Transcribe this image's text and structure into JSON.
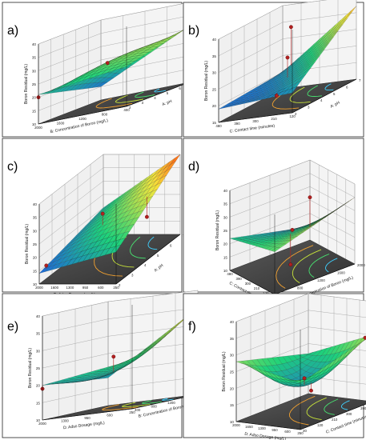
{
  "chart_data": [
    {
      "type": "surface3d",
      "panel": "a)",
      "zlabel": "Boron Residual (mg/L)",
      "xlabel": "B: Concentration of Boron (mg/L)",
      "ylabel": "A: pH",
      "zticks": [
        "10",
        "15",
        "20",
        "25",
        "30",
        "35",
        "40"
      ],
      "xticks": [
        "2000",
        "1600",
        "1200",
        "800",
        "400"
      ],
      "yticks": [
        "2",
        "3",
        "4",
        "5",
        "6",
        "7"
      ],
      "zlim": [
        10,
        40
      ],
      "xlim": [
        2000,
        400
      ],
      "ylim": [
        2,
        7
      ],
      "corners": [
        21,
        25,
        15,
        31
      ],
      "center": 26.5,
      "points": [
        {
          "u": 0.5,
          "v": 0.4,
          "z": 26
        },
        {
          "u": 1.0,
          "v": 1.0,
          "z": 34
        },
        {
          "u": 0.0,
          "v": 0.0,
          "z": 20
        }
      ]
    },
    {
      "type": "surface3d",
      "panel": "b)",
      "zlabel": "Boron Residual (mg/L)",
      "xlabel": "C: Contact time (minutes)",
      "ylabel": "A: pH",
      "zticks": [
        "15",
        "20",
        "25",
        "30",
        "35",
        "40"
      ],
      "xticks": [
        "480",
        "390",
        "300",
        "210",
        "120"
      ],
      "yticks": [
        "2",
        "3",
        "4",
        "5",
        "6",
        "7"
      ],
      "zlim": [
        15,
        40
      ],
      "xlim": [
        480,
        120
      ],
      "ylim": [
        2,
        7
      ],
      "corners": [
        19,
        21,
        20,
        37
      ],
      "center": 22,
      "points": [
        {
          "u": 0.5,
          "v": 0.5,
          "z": 28
        },
        {
          "u": 0.2,
          "v": 0.9,
          "z": 34
        },
        {
          "u": 0.7,
          "v": 0.1,
          "z": 20
        }
      ]
    },
    {
      "type": "surface3d",
      "panel": "c)",
      "zlabel": "Boron Residual (mg/L)",
      "xlabel": "D: Adso Dosage (mg/L)",
      "ylabel": "A: pH",
      "zticks": [
        "10",
        "15",
        "20",
        "25",
        "30",
        "35",
        "40"
      ],
      "xticks": [
        "2000",
        "1600",
        "1300",
        "950",
        "600",
        "250"
      ],
      "yticks": [
        "2",
        "3",
        "4",
        "5",
        "6",
        "7"
      ],
      "zlim": [
        10,
        40
      ],
      "xlim": [
        2000,
        250
      ],
      "ylim": [
        2,
        7
      ],
      "corners": [
        14,
        22,
        20,
        40
      ],
      "center": 25,
      "points": [
        {
          "u": 0.45,
          "v": 0.45,
          "z": 28
        },
        {
          "u": 0.9,
          "v": 0.6,
          "z": 24
        },
        {
          "u": 0.05,
          "v": 0.05,
          "z": 16
        }
      ]
    },
    {
      "type": "surface3d",
      "panel": "d)",
      "zlabel": "Boron Residual (mg/L)",
      "xlabel": "C: Contact time (minutes)",
      "ylabel": "B: Concentration of Boron (mg/L)",
      "zticks": [
        "10",
        "15",
        "20",
        "25",
        "30",
        "35",
        "40"
      ],
      "xticks": [
        "480",
        "390",
        "300",
        "210",
        "120",
        "30"
      ],
      "yticks": [
        "400",
        "800",
        "1200",
        "1600",
        "2000"
      ],
      "zlim": [
        10,
        40
      ],
      "xlim": [
        480,
        30
      ],
      "ylim": [
        400,
        2000
      ],
      "corners": [
        22,
        26,
        15,
        35
      ],
      "center": 23,
      "points": [
        {
          "u": 0.5,
          "v": 0.5,
          "z": 24
        },
        {
          "u": 0.0,
          "v": 1.0,
          "z": 26
        },
        {
          "u": 0.55,
          "v": 0.45,
          "z": 12
        }
      ]
    },
    {
      "type": "surface3d",
      "panel": "e)",
      "zlabel": "Boron Residual (mg/L)",
      "xlabel": "D: Adso Dosage (mg/L)",
      "ylabel": "B: Concentration of Boron (mg/L)",
      "zticks": [
        "10",
        "15",
        "20",
        "25",
        "30",
        "35",
        "40"
      ],
      "xticks": [
        "2000",
        "1300",
        "950",
        "600",
        "250"
      ],
      "yticks": [
        "400",
        "800",
        "1200",
        "1600",
        "2000"
      ],
      "zlim": [
        10,
        40
      ],
      "xlim": [
        2000,
        250
      ],
      "ylim": [
        400,
        2000
      ],
      "corners": [
        20,
        24,
        18,
        35
      ],
      "center": 21,
      "points": [
        {
          "u": 0.5,
          "v": 0.4,
          "z": 25
        },
        {
          "u": 1.0,
          "v": 1.0,
          "z": 34
        },
        {
          "u": 0.0,
          "v": 0.0,
          "z": 19
        }
      ]
    },
    {
      "type": "surface3d",
      "panel": "f)",
      "zlabel": "Boron Residual (mg/L)",
      "xlabel": "D: Adso Dosage (mg/L)",
      "ylabel": "C: Contact time (minutes)",
      "zticks": [
        "10",
        "15",
        "20",
        "25",
        "30",
        "35",
        "40"
      ],
      "xticks": [
        "2000",
        "1650",
        "1300",
        "950",
        "600",
        "250"
      ],
      "yticks": [
        "30",
        "120",
        "210",
        "300",
        "390",
        "480"
      ],
      "zlim": [
        10,
        40
      ],
      "xlim": [
        2000,
        250
      ],
      "ylim": [
        30,
        480
      ],
      "corners": [
        28,
        24,
        22,
        30
      ],
      "center": 18,
      "points": [
        {
          "u": 0.5,
          "v": 0.5,
          "z": 20
        },
        {
          "u": 0.55,
          "v": 0.55,
          "z": 16
        },
        {
          "u": 1.0,
          "v": 0.9,
          "z": 30
        }
      ]
    }
  ],
  "colors": {
    "low": "#1e3cff",
    "mid": "#1ed27a",
    "high": "#f5e63c",
    "top": "#ff5a14",
    "floor": "#4a4a4a",
    "point": "#b32020",
    "frame": "#000000"
  }
}
